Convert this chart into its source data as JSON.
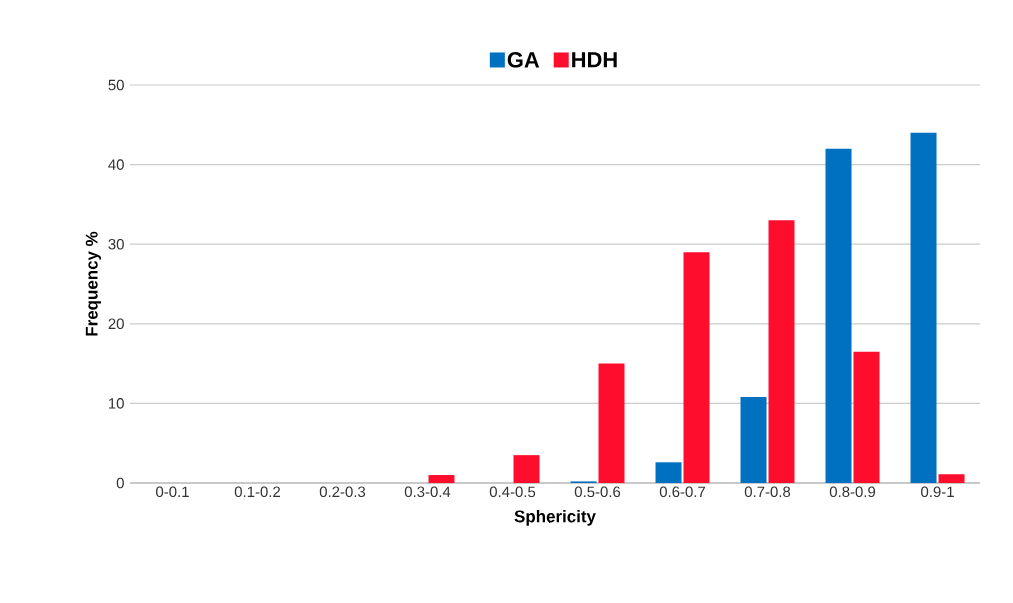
{
  "chart_data": {
    "type": "bar",
    "xlabel": "Sphericity",
    "ylabel": "Frequency %",
    "categories": [
      "0-0.1",
      "0.1-0.2",
      "0.2-0.3",
      "0.3-0.4",
      "0.4-0.5",
      "0.5-0.6",
      "0.6-0.7",
      "0.7-0.8",
      "0.8-0.9",
      "0.9-1"
    ],
    "series": [
      {
        "name": "GA",
        "color": "#0070c0",
        "values": [
          0,
          0,
          0,
          0,
          0,
          0.2,
          2.6,
          10.8,
          42,
          44
        ]
      },
      {
        "name": "HDH",
        "color": "#ff0d2d",
        "values": [
          0,
          0,
          0,
          1,
          3.5,
          15,
          29,
          33,
          16.5,
          1.1
        ]
      }
    ],
    "ylim": [
      0,
      50
    ],
    "yticks": [
      0,
      10,
      20,
      30,
      40,
      50
    ],
    "grid": "y",
    "legend": "top"
  }
}
